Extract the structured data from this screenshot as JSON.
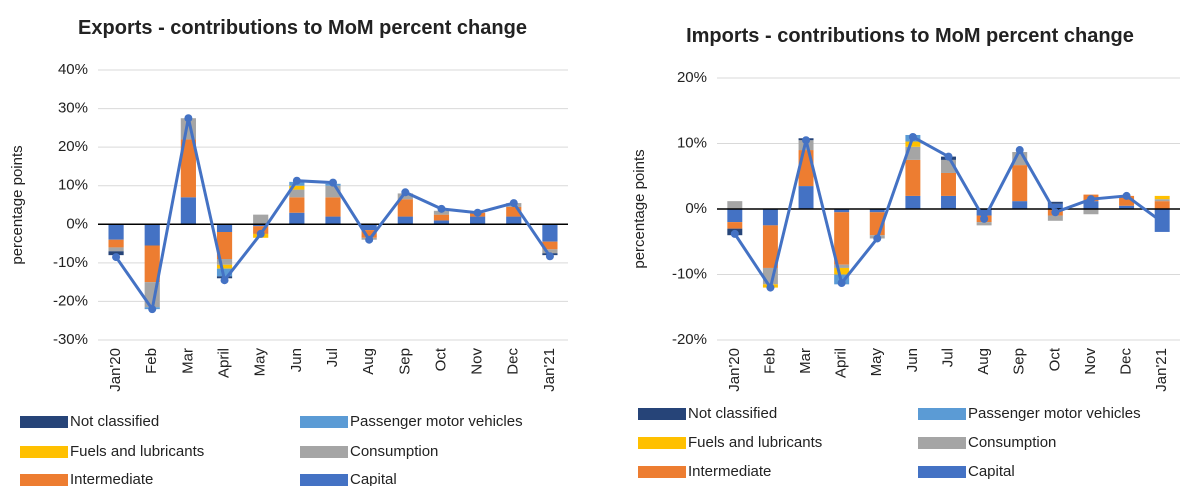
{
  "chart_data": [
    {
      "type": "bar",
      "stacked": true,
      "title": "Exports - contributions to MoM percent change",
      "ylabel": "percentage points",
      "categories": [
        "Jan'20",
        "Feb",
        "Mar",
        "April",
        "May",
        "Jun",
        "Jul",
        "Aug",
        "Sep",
        "Oct",
        "Nov",
        "Dec",
        "Jan'21"
      ],
      "series": [
        {
          "name": "Not classified",
          "color": "#264478",
          "values": [
            -1,
            0,
            0,
            -0.5,
            0,
            0,
            0,
            0,
            0,
            0,
            0,
            0,
            -0.5
          ]
        },
        {
          "name": "Passenger motor vehicles",
          "color": "#5b9bd5",
          "values": [
            0,
            -0.5,
            0,
            -2,
            0,
            1,
            0.5,
            0,
            0,
            0,
            0,
            0,
            0
          ]
        },
        {
          "name": "Fuels and lubricants",
          "color": "#ffc000",
          "values": [
            0,
            0,
            0,
            -1,
            -1,
            1,
            0,
            0,
            0,
            0,
            0,
            0,
            0
          ]
        },
        {
          "name": "Consumption",
          "color": "#a5a5a5",
          "values": [
            -1,
            -6.5,
            5.5,
            -1.5,
            2.5,
            2,
            3,
            -0.5,
            1.5,
            1,
            0,
            1,
            -1
          ]
        },
        {
          "name": "Intermediate",
          "color": "#ed7d31",
          "values": [
            -2,
            -9.5,
            15,
            -7,
            -2,
            4,
            5,
            -2,
            4.5,
            1.5,
            1,
            2.5,
            -2
          ]
        },
        {
          "name": "Capital",
          "color": "#4472c4",
          "values": [
            -4,
            -5.5,
            7,
            -2,
            -0.5,
            3,
            2,
            -1.5,
            2,
            1,
            2,
            2,
            -4.5
          ]
        }
      ],
      "line": {
        "color": "#4472c4",
        "values": [
          -8.5,
          -22,
          27.5,
          -14.5,
          -2.5,
          11.3,
          10.8,
          -4,
          8.3,
          4,
          3,
          5.5,
          -8.3
        ]
      },
      "ylim": [
        -30,
        40
      ],
      "yticks": [
        {
          "value": -30,
          "label": "-30%"
        },
        {
          "value": -20,
          "label": "-20%"
        },
        {
          "value": -10,
          "label": "-10%"
        },
        {
          "value": 0,
          "label": "0%"
        },
        {
          "value": 10,
          "label": "10%"
        },
        {
          "value": 20,
          "label": "20%"
        },
        {
          "value": 30,
          "label": "30%"
        },
        {
          "value": 40,
          "label": "40%"
        }
      ],
      "grid": true
    },
    {
      "type": "bar",
      "stacked": true,
      "title": "Imports - contributions to MoM percent change",
      "ylabel": "percentage points",
      "categories": [
        "Jan'20",
        "Feb",
        "Mar",
        "April",
        "May",
        "Jun",
        "Jul",
        "Aug",
        "Sep",
        "Oct",
        "Nov",
        "Dec",
        "Jan'21"
      ],
      "series": [
        {
          "name": "Not classified",
          "color": "#264478",
          "values": [
            -1,
            0,
            0.3,
            0,
            0,
            0,
            0.5,
            0,
            0,
            0.3,
            0,
            0,
            0
          ]
        },
        {
          "name": "Passenger motor vehicles",
          "color": "#5b9bd5",
          "values": [
            0,
            0,
            0,
            -1.5,
            0,
            1,
            0,
            0,
            0,
            0,
            0,
            0,
            0
          ]
        },
        {
          "name": "Fuels and lubricants",
          "color": "#ffc000",
          "values": [
            0,
            -0.5,
            0,
            -1,
            0,
            0.8,
            0,
            0,
            0,
            0,
            0,
            0,
            0.5
          ]
        },
        {
          "name": "Consumption",
          "color": "#a5a5a5",
          "values": [
            1.2,
            -2.5,
            1.5,
            -0.5,
            -0.5,
            2,
            2,
            -0.5,
            2,
            -0.8,
            -0.8,
            0,
            0.3
          ]
        },
        {
          "name": "Intermediate",
          "color": "#ed7d31",
          "values": [
            -1,
            -6.5,
            5.5,
            -8,
            -3.5,
            5.5,
            3.5,
            -1,
            5.5,
            -1,
            1,
            1.5,
            1.2
          ]
        },
        {
          "name": "Capital",
          "color": "#4472c4",
          "values": [
            -2,
            -2.5,
            3.5,
            -0.5,
            -0.5,
            2,
            2,
            -1,
            1.2,
            0.8,
            1.2,
            0.5,
            -3.5
          ]
        }
      ],
      "line": {
        "color": "#4472c4",
        "values": [
          -3.8,
          -12,
          10.5,
          -11.3,
          -4.5,
          11,
          8,
          -1.5,
          9,
          -0.5,
          1.5,
          2,
          -2
        ]
      },
      "ylim": [
        -20,
        20
      ],
      "yticks": [
        {
          "value": -20,
          "label": "-20%"
        },
        {
          "value": -10,
          "label": "-10%"
        },
        {
          "value": 0,
          "label": "0%"
        },
        {
          "value": 10,
          "label": "10%"
        },
        {
          "value": 20,
          "label": "20%"
        }
      ],
      "grid": true
    }
  ]
}
